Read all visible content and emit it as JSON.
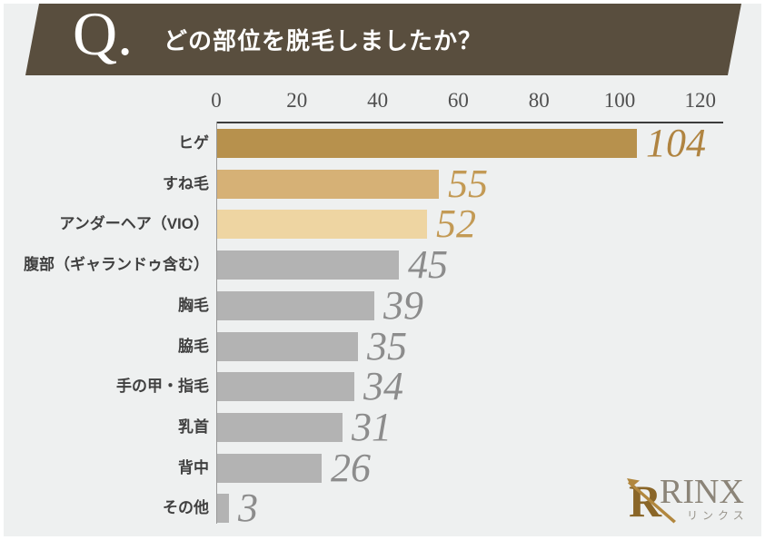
{
  "header": {
    "q_label": "Q.",
    "title": "どの部位を脱毛しましたか？"
  },
  "chart_data": {
    "type": "bar",
    "orientation": "horizontal",
    "title": "どの部位を脱毛しましたか？",
    "categories": [
      "ヒゲ",
      "すね毛",
      "アンダーヘア（VIO）",
      "腹部（ギャランドゥ含む）",
      "胸毛",
      "脇毛",
      "手の甲・指毛",
      "乳首",
      "背中",
      "その他"
    ],
    "values": [
      104,
      55,
      52,
      45,
      39,
      35,
      34,
      31,
      26,
      3
    ],
    "xticks": [
      0,
      20,
      40,
      60,
      80,
      100,
      120
    ],
    "xlim": [
      0,
      125
    ],
    "bar_colors": [
      "#b7914d",
      "#d6b176",
      "#eed5a2",
      "#b3b3b3",
      "#b3b3b3",
      "#b3b3b3",
      "#b3b3b3",
      "#b3b3b3",
      "#b3b3b3",
      "#b3b3b3"
    ],
    "value_label_colors": [
      "#b08441",
      "#c39a55",
      "#c39a55",
      "#8c8c8c",
      "#8c8c8c",
      "#8c8c8c",
      "#8c8c8c",
      "#8c8c8c",
      "#8c8c8c",
      "#8c8c8c"
    ],
    "grid": false,
    "legend": false
  },
  "logo": {
    "name": "RINX",
    "subtitle": "リンクス"
  },
  "colors": {
    "banner_bg": "#594e3e",
    "background": "#eef0f0",
    "axis_line": "#3c3c3c"
  }
}
